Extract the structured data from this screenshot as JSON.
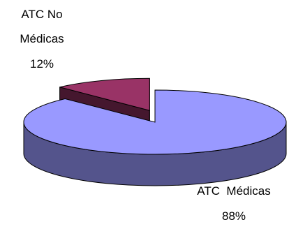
{
  "chart_data": {
    "type": "pie",
    "style": "3d-exploded",
    "slices": [
      {
        "label_lines": [
          "ATC No",
          "Médicas",
          "12%"
        ],
        "value": 12,
        "color": "#993366",
        "exploded": true
      },
      {
        "label_lines": [
          "ATC  Médicas",
          "88%"
        ],
        "value": 88,
        "color": "#9999ff",
        "exploded": false
      }
    ]
  }
}
